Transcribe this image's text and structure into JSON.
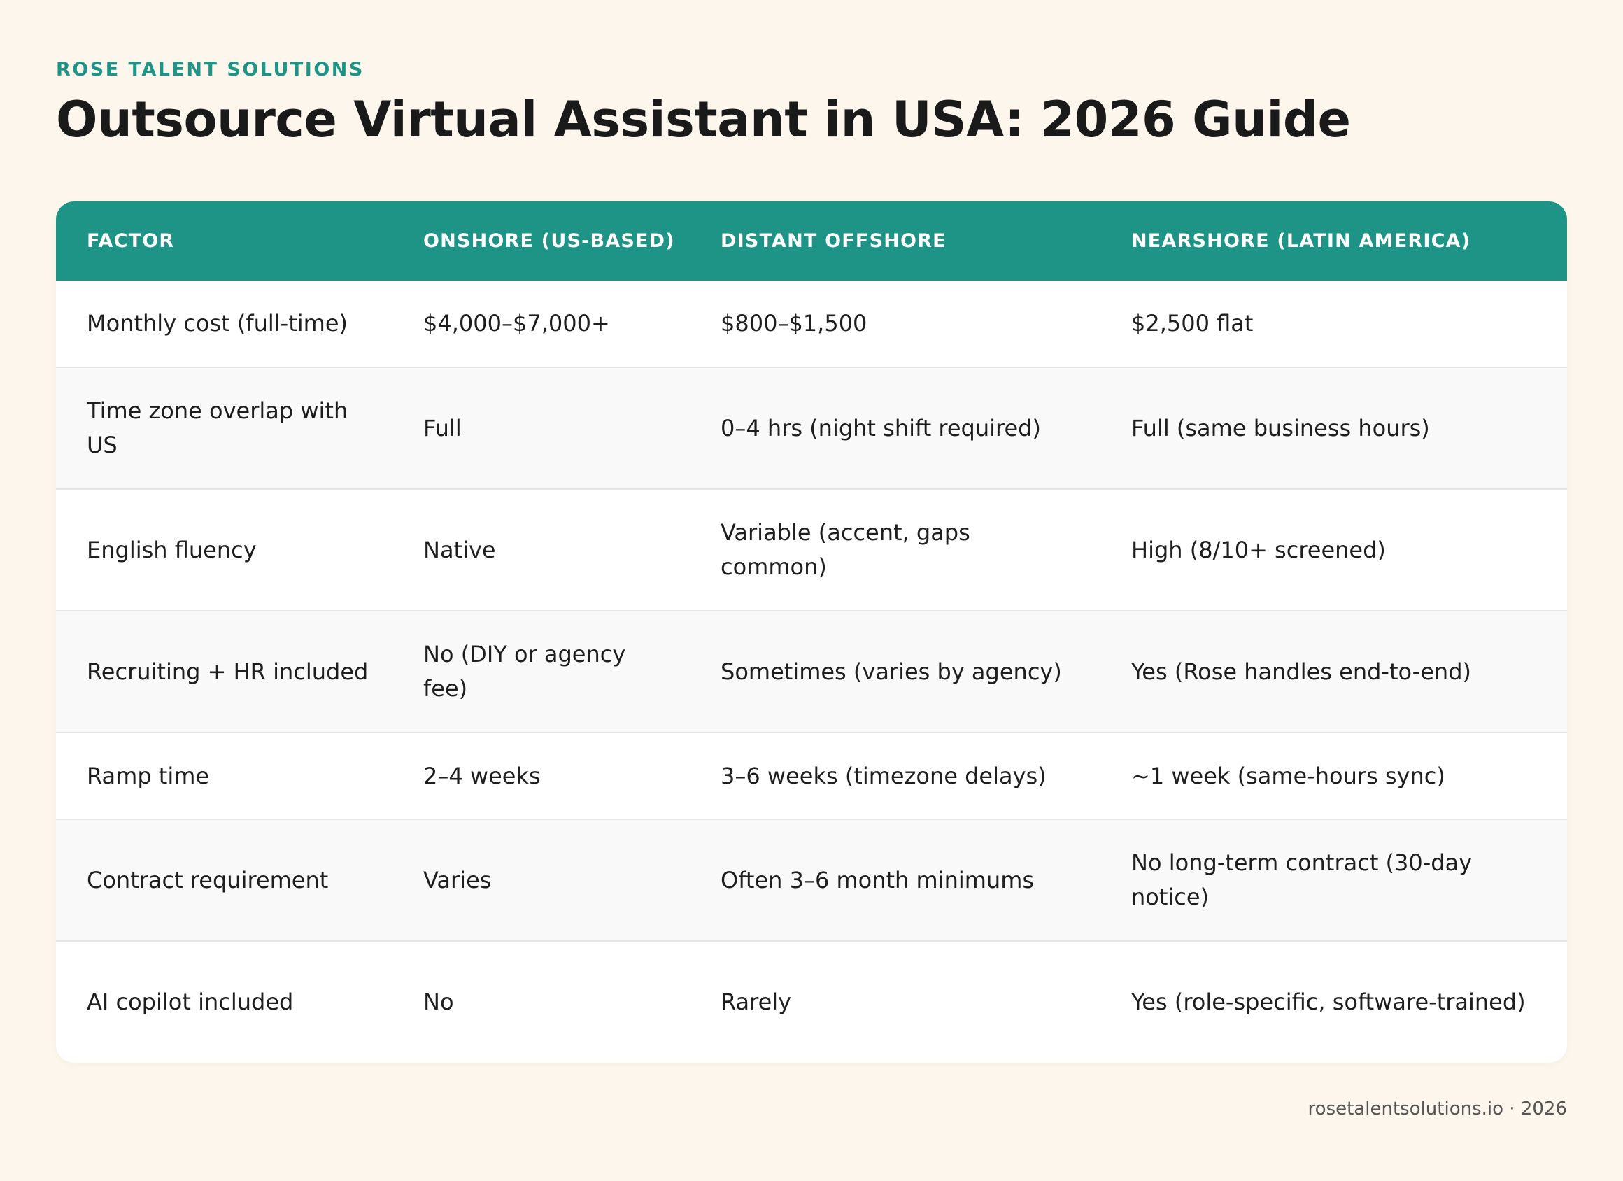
{
  "brand": "ROSE TALENT SOLUTIONS",
  "title": "Outsource Virtual Assistant in USA: 2026 Guide",
  "table": {
    "headers": [
      "FACTOR",
      "ONSHORE (US-BASED)",
      "DISTANT OFFSHORE",
      "NEARSHORE (LATIN AMERICA)"
    ],
    "rows": [
      [
        "Monthly cost (full-time)",
        "$4,000–$7,000+",
        "$800–$1,500",
        "$2,500 flat"
      ],
      [
        "Time zone overlap with US",
        "Full",
        "0–4 hrs (night shift required)",
        "Full (same business hours)"
      ],
      [
        "English fluency",
        "Native",
        "Variable (accent, gaps common)",
        "High (8/10+ screened)"
      ],
      [
        "Recruiting + HR included",
        "No (DIY or agency fee)",
        "Sometimes (varies by agency)",
        "Yes (Rose handles end-to-end)"
      ],
      [
        "Ramp time",
        "2–4 weeks",
        "3–6 weeks (timezone delays)",
        "~1 week (same-hours sync)"
      ],
      [
        "Contract requirement",
        "Varies",
        "Often 3–6 month minimums",
        "No long-term contract (30-day notice)"
      ],
      [
        "AI copilot included",
        "No",
        "Rarely",
        "Yes (role-specific, software-trained)"
      ]
    ]
  },
  "footer": "rosetalentsolutions.io · 2026",
  "colors": {
    "accent": "#1E9486",
    "background": "#FDF6EC"
  }
}
